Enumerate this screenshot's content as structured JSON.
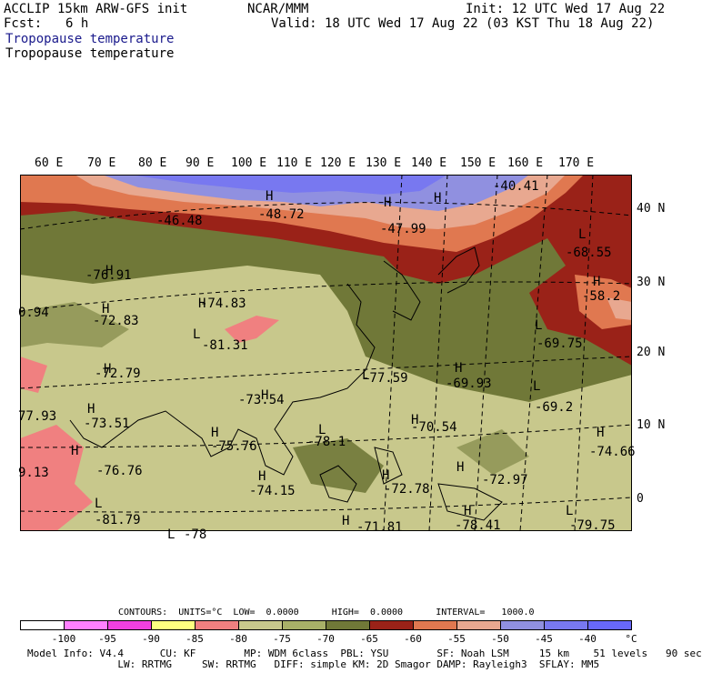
{
  "header": {
    "model": "ACCLIP 15km ARW-GFS init",
    "org": "NCAR/MMM",
    "init": "Init: 12 UTC Wed 17 Aug 22",
    "fcst_label": "Fcst:",
    "fcst_value": "6 h",
    "valid": "Valid: 18 UTC Wed 17 Aug 22 (03 KST Thu 18 Aug 22)",
    "field_title": "Tropopause temperature",
    "field_subtitle": "Tropopause temperature"
  },
  "longitude_labels": [
    "60 E",
    "70 E",
    "80 E",
    "90 E",
    "100 E",
    "110 E",
    "120 E",
    "130 E",
    "140 E",
    "150 E",
    "160 E",
    "170 E"
  ],
  "latitude_labels": [
    "40 N",
    "30 N",
    "20 N",
    "10 N",
    "0"
  ],
  "map_labels": [
    {
      "text": "H"
    },
    {
      "text": "-46.48"
    },
    {
      "text": "H"
    },
    {
      "text": "-48.72"
    },
    {
      "text": "H"
    },
    {
      "text": "-47.99"
    },
    {
      "text": "-40.41"
    },
    {
      "text": "L"
    },
    {
      "text": "-68.55"
    },
    {
      "text": "H"
    },
    {
      "text": "-58.2"
    },
    {
      "text": "H"
    },
    {
      "text": "-76.91"
    },
    {
      "text": "H"
    },
    {
      "text": "-74.83"
    },
    {
      "text": "0.94"
    },
    {
      "text": "H"
    },
    {
      "text": "-72.83"
    },
    {
      "text": "L"
    },
    {
      "text": "-81.31"
    },
    {
      "text": "L"
    },
    {
      "text": "-69.75"
    },
    {
      "text": "H"
    },
    {
      "text": "-72.79"
    },
    {
      "text": "L"
    },
    {
      "text": "-77.59"
    },
    {
      "text": "H"
    },
    {
      "text": "-69.93"
    },
    {
      "text": "H"
    },
    {
      "text": "-73.54"
    },
    {
      "text": "L"
    },
    {
      "text": "-69.2"
    },
    {
      "text": "77.93"
    },
    {
      "text": "H"
    },
    {
      "text": "-73.51"
    },
    {
      "text": "H"
    },
    {
      "text": "-70.54"
    },
    {
      "text": "H"
    },
    {
      "text": "-75.76"
    },
    {
      "text": "L"
    },
    {
      "text": "-78.1"
    },
    {
      "text": "H"
    },
    {
      "text": "-74.66"
    },
    {
      "text": "H"
    },
    {
      "text": "9.13"
    },
    {
      "text": "-76.76"
    },
    {
      "text": "H"
    },
    {
      "text": "-72.97"
    },
    {
      "text": "H"
    },
    {
      "text": "-74.15"
    },
    {
      "text": "H"
    },
    {
      "text": "-72.78"
    },
    {
      "text": "L"
    },
    {
      "text": "-81.79"
    },
    {
      "text": "H"
    },
    {
      "text": "-78.41"
    },
    {
      "text": "L"
    },
    {
      "text": "-79.75"
    },
    {
      "text": "H"
    },
    {
      "text": "-71.81"
    },
    {
      "text": "L"
    },
    {
      "text": "-78"
    }
  ],
  "contour_info": "CONTOURS:  UNITS=°C  LOW=  0.0000      HIGH=  0.0000      INTERVAL=   1000.0",
  "colorbar": {
    "colors": [
      "#ffffff",
      "#ff80ff",
      "#f040e0",
      "#ffff80",
      "#f08080",
      "#c8c88c",
      "#a8b068",
      "#707838",
      "#9a2218",
      "#e07850",
      "#e8a890",
      "#9090e0",
      "#7878f0",
      "#6868f8"
    ],
    "ticks": [
      "-100",
      "-95",
      "-90",
      "-85",
      "-80",
      "-75",
      "-70",
      "-65",
      "-60",
      "-55",
      "-50",
      "-45",
      "-40",
      "°C"
    ]
  },
  "footer": {
    "line1": "Model Info: V4.4      CU: KF        MP: WDM 6class  PBL: YSU        SF: Noah LSM     15 km    51 levels   90 sec",
    "line2": "               LW: RRTMG     SW: RRTMG   DIFF: simple KM: 2D Smagor DAMP: Rayleigh3  SFLAY: MM5"
  }
}
